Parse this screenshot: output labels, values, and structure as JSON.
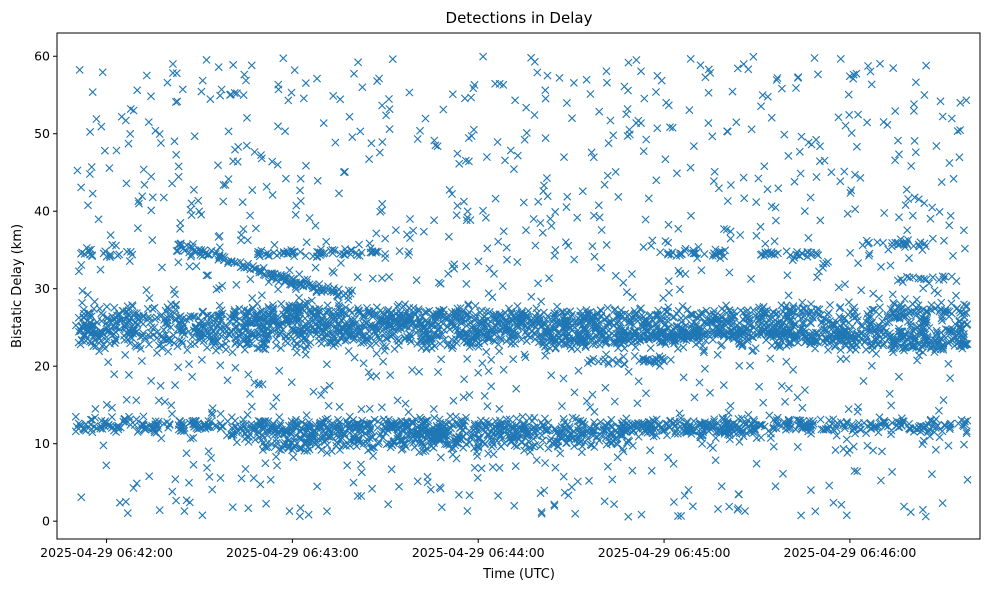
{
  "chart_data": {
    "type": "scatter",
    "title": "Detections in Delay",
    "xlabel": "Time (UTC)",
    "ylabel": "Bistatic Delay (km)",
    "marker": "x",
    "marker_color": "#1f77b4",
    "grid": false,
    "legend": "none",
    "x_range": [
      "2025-04-29 06:41:44",
      "2025-04-29 06:46:42"
    ],
    "ylim": [
      -2.3,
      63
    ],
    "x_ticks": [
      "2025-04-29 06:42:00",
      "2025-04-29 06:43:00",
      "2025-04-29 06:44:00",
      "2025-04-29 06:45:00",
      "2025-04-29 06:46:00"
    ],
    "y_ticks": [
      0,
      10,
      20,
      30,
      40,
      50,
      60
    ],
    "series": [
      {
        "tracks": [
          {
            "start": "2025-04-29 06:41:50",
            "end": "2025-04-29 06:46:38",
            "y_start": 12.3,
            "y_end": 12.3,
            "spread": 0.5,
            "density": 0.9
          },
          {
            "start": "2025-04-29 06:42:50",
            "end": "2025-04-29 06:44:50",
            "y_start": 9.8,
            "y_end": 10.6,
            "spread": 0.6,
            "density": 0.7
          },
          {
            "start": "2025-04-29 06:42:40",
            "end": "2025-04-29 06:43:50",
            "y_start": 11.2,
            "y_end": 11.0,
            "spread": 0.5,
            "density": 0.6
          },
          {
            "start": "2025-04-29 06:43:40",
            "end": "2025-04-29 06:45:30",
            "y_start": 11.2,
            "y_end": 11.6,
            "spread": 0.4,
            "density": 0.5
          },
          {
            "start": "2025-04-29 06:41:50",
            "end": "2025-04-29 06:46:38",
            "y_start": 24.0,
            "y_end": 24.2,
            "spread": 0.9,
            "density": 1.3
          },
          {
            "start": "2025-04-29 06:41:50",
            "end": "2025-04-29 06:44:40",
            "y_start": 26.2,
            "y_end": 25.4,
            "spread": 0.7,
            "density": 0.9
          },
          {
            "start": "2025-04-29 06:42:40",
            "end": "2025-04-29 06:44:40",
            "y_start": 27.2,
            "y_end": 26.4,
            "spread": 0.5,
            "density": 0.7
          },
          {
            "start": "2025-04-29 06:44:40",
            "end": "2025-04-29 06:46:38",
            "y_start": 26.0,
            "y_end": 27.0,
            "spread": 0.7,
            "density": 0.9
          },
          {
            "start": "2025-04-29 06:44:20",
            "end": "2025-04-29 06:45:40",
            "y_start": 23.2,
            "y_end": 24.6,
            "spread": 0.4,
            "density": 0.6
          },
          {
            "start": "2025-04-29 06:45:40",
            "end": "2025-04-29 06:46:38",
            "y_start": 23.5,
            "y_end": 22.6,
            "spread": 0.5,
            "density": 0.6
          },
          {
            "start": "2025-04-29 06:42:22",
            "end": "2025-04-29 06:43:05",
            "y_start": 35.8,
            "y_end": 30.2,
            "spread": 0.3,
            "density": 0.8
          },
          {
            "start": "2025-04-29 06:43:05",
            "end": "2025-04-29 06:43:20",
            "y_start": 30.2,
            "y_end": 29.2,
            "spread": 0.3,
            "density": 0.6
          },
          {
            "start": "2025-04-29 06:42:48",
            "end": "2025-04-29 06:43:28",
            "y_start": 34.6,
            "y_end": 34.6,
            "spread": 0.25,
            "density": 0.5
          },
          {
            "start": "2025-04-29 06:45:00",
            "end": "2025-04-29 06:45:20",
            "y_start": 34.6,
            "y_end": 34.6,
            "spread": 0.25,
            "density": 0.5
          },
          {
            "start": "2025-04-29 06:45:30",
            "end": "2025-04-29 06:45:50",
            "y_start": 34.6,
            "y_end": 34.6,
            "spread": 0.25,
            "density": 0.5
          },
          {
            "start": "2025-04-29 06:46:05",
            "end": "2025-04-29 06:46:25",
            "y_start": 35.8,
            "y_end": 35.8,
            "spread": 0.25,
            "density": 0.4
          },
          {
            "start": "2025-04-29 06:44:35",
            "end": "2025-04-29 06:45:00",
            "y_start": 20.8,
            "y_end": 20.8,
            "spread": 0.3,
            "density": 0.5
          },
          {
            "start": "2025-04-29 06:41:50",
            "end": "2025-04-29 06:42:10",
            "y_start": 34.6,
            "y_end": 34.6,
            "spread": 0.3,
            "density": 0.3
          },
          {
            "start": "2025-04-29 06:46:15",
            "end": "2025-04-29 06:46:35",
            "y_start": 31.2,
            "y_end": 31.2,
            "spread": 0.3,
            "density": 0.3
          }
        ],
        "noise": {
          "start": "2025-04-29 06:41:50",
          "end": "2025-04-29 06:46:38",
          "y_min": 0.5,
          "y_max": 60,
          "count": 1100
        }
      }
    ]
  }
}
